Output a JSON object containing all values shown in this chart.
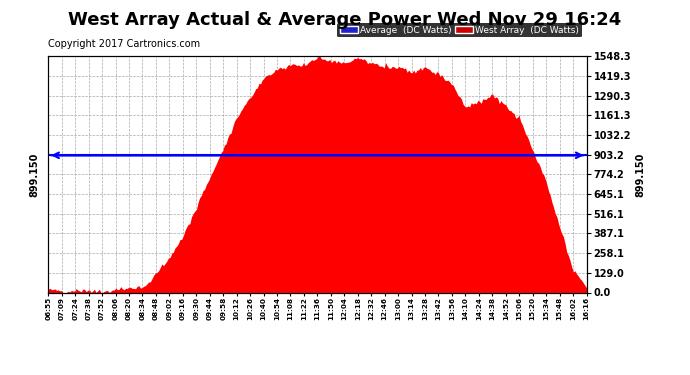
{
  "title": "West Array Actual & Average Power Wed Nov 29 16:24",
  "copyright": "Copyright 2017 Cartronics.com",
  "yticks": [
    0.0,
    129.0,
    258.1,
    387.1,
    516.1,
    645.1,
    774.2,
    903.2,
    1032.2,
    1161.3,
    1290.3,
    1419.3,
    1548.3
  ],
  "ymax": 1548.3,
  "ymin": 0.0,
  "average_value": 899.15,
  "average_label": "899.150",
  "legend_avg_label": "Average  (DC Watts)",
  "legend_west_label": "West Array  (DC Watts)",
  "avg_color": "#0000ff",
  "avg_bg_color": "#2222cc",
  "west_bg_color": "#cc0000",
  "fill_color": "#ff0000",
  "background_color": "#ffffff",
  "grid_color": "#aaaaaa",
  "title_fontsize": 13,
  "copyright_fontsize": 7,
  "power_values": [
    0,
    5,
    8,
    10,
    15,
    20,
    30,
    55,
    110,
    220,
    380,
    560,
    750,
    950,
    1150,
    1300,
    1400,
    1460,
    1490,
    1510,
    1520,
    1515,
    1510,
    1508,
    1505,
    1500,
    1490,
    1480,
    1460,
    1440,
    1380,
    1200,
    1270,
    1290,
    1250,
    1150,
    950,
    700,
    400,
    150,
    20
  ],
  "xtick_labels": [
    "06:55",
    "07:09",
    "07:24",
    "07:38",
    "07:52",
    "08:06",
    "08:20",
    "08:34",
    "08:48",
    "09:02",
    "09:16",
    "09:30",
    "09:44",
    "09:58",
    "10:12",
    "10:26",
    "10:40",
    "10:54",
    "11:08",
    "11:22",
    "11:36",
    "11:50",
    "12:04",
    "12:18",
    "12:32",
    "12:46",
    "13:00",
    "13:14",
    "13:28",
    "13:42",
    "13:56",
    "14:10",
    "14:24",
    "14:38",
    "14:52",
    "15:06",
    "15:20",
    "15:34",
    "15:48",
    "16:02",
    "16:16"
  ]
}
